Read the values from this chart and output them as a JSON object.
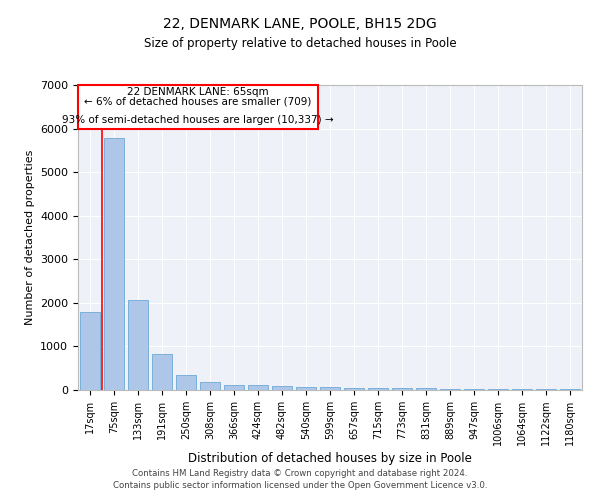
{
  "title": "22, DENMARK LANE, POOLE, BH15 2DG",
  "subtitle": "Size of property relative to detached houses in Poole",
  "xlabel": "Distribution of detached houses by size in Poole",
  "ylabel": "Number of detached properties",
  "categories": [
    "17sqm",
    "75sqm",
    "133sqm",
    "191sqm",
    "250sqm",
    "308sqm",
    "366sqm",
    "424sqm",
    "482sqm",
    "540sqm",
    "599sqm",
    "657sqm",
    "715sqm",
    "773sqm",
    "831sqm",
    "889sqm",
    "947sqm",
    "1006sqm",
    "1064sqm",
    "1122sqm",
    "1180sqm"
  ],
  "values": [
    1780,
    5780,
    2060,
    820,
    340,
    190,
    125,
    105,
    95,
    70,
    65,
    50,
    45,
    40,
    35,
    30,
    25,
    20,
    18,
    15,
    12
  ],
  "bar_color": "#aec6e8",
  "bar_edgecolor": "#5a9fd4",
  "annotation_line1": "22 DENMARK LANE: 65sqm",
  "annotation_line2": "← 6% of detached houses are smaller (709)",
  "annotation_line3": "93% of semi-detached houses are larger (10,337) →",
  "ylim": [
    0,
    7000
  ],
  "yticks": [
    0,
    1000,
    2000,
    3000,
    4000,
    5000,
    6000,
    7000
  ],
  "background_color": "#eef2f8",
  "footer_line1": "Contains HM Land Registry data © Crown copyright and database right 2024.",
  "footer_line2": "Contains public sector information licensed under the Open Government Licence v3.0."
}
